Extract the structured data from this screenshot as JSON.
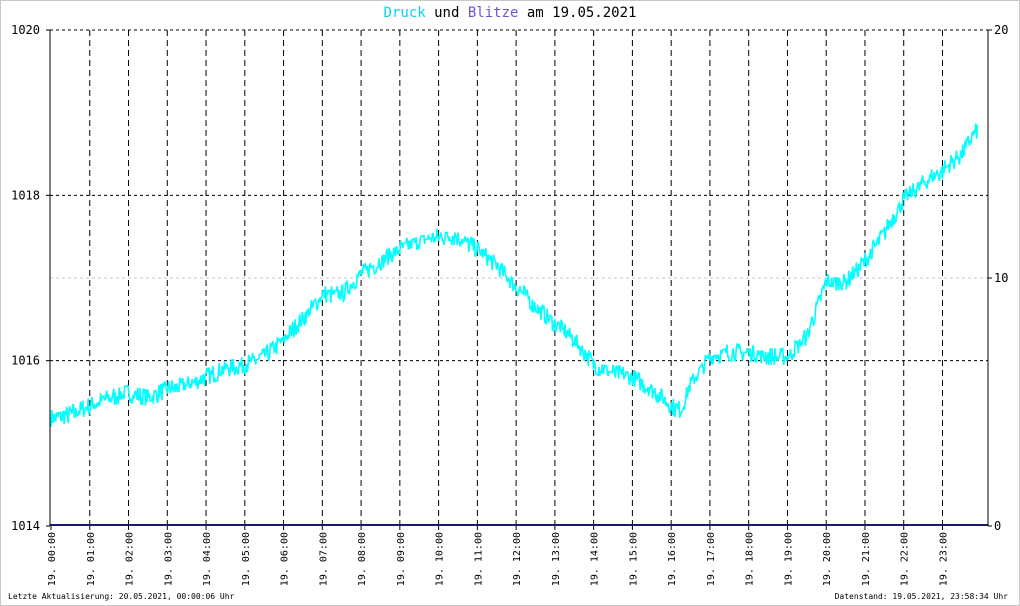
{
  "title": {
    "word1": "Druck",
    "word1_color": "#00d8e8",
    "word2": "und",
    "word3": "Blitze",
    "word3_color": "#6a5acd",
    "rest": "am 19.05.2021"
  },
  "footer": {
    "left": "Letzte Aktualisierung: 20.05.2021, 00:00:06 Uhr",
    "right": "Datenstand: 19.05.2021, 23:58:34 Uhr"
  },
  "chart_data": {
    "type": "line",
    "grid": true,
    "left_axis": {
      "ylim": [
        1014,
        1020
      ],
      "ticks": [
        "1014",
        "1016",
        "1018",
        "1020"
      ]
    },
    "right_axis": {
      "ylim": [
        0,
        20
      ],
      "ticks": [
        "0",
        "10",
        "20"
      ]
    },
    "x_tick_labels": [
      "19. 00:00",
      "19. 01:00",
      "19. 02:00",
      "19. 03:00",
      "19. 04:00",
      "19. 05:00",
      "19. 06:00",
      "19. 07:00",
      "19. 08:00",
      "19. 09:00",
      "19. 10:00",
      "19. 11:00",
      "19. 12:00",
      "19. 13:00",
      "19. 14:00",
      "19. 15:00",
      "19. 16:00",
      "19. 17:00",
      "19. 18:00",
      "19. 19:00",
      "19. 20:00",
      "19. 21:00",
      "19. 22:00",
      "19. 23:00"
    ],
    "series": [
      {
        "name": "Druck",
        "axis": "left",
        "color": "#00ffff",
        "x_hours": [
          0,
          0.5,
          1,
          1.5,
          2,
          2.5,
          3,
          3.5,
          4,
          4.5,
          5,
          5.5,
          6,
          6.5,
          7,
          7.5,
          8,
          8.5,
          9,
          9.5,
          10,
          10.5,
          11,
          11.5,
          12,
          12.5,
          13,
          13.5,
          14,
          14.5,
          15,
          15.5,
          16,
          16.25,
          16.5,
          17,
          17.5,
          18,
          18.5,
          19,
          19.5,
          20,
          20.5,
          21,
          21.5,
          22,
          22.5,
          23,
          23.5,
          23.9
        ],
        "values": [
          1015.3,
          1015.35,
          1015.45,
          1015.55,
          1015.6,
          1015.55,
          1015.65,
          1015.7,
          1015.8,
          1015.9,
          1015.95,
          1016.05,
          1016.25,
          1016.5,
          1016.8,
          1016.8,
          1017.05,
          1017.2,
          1017.35,
          1017.45,
          1017.5,
          1017.5,
          1017.35,
          1017.15,
          1016.9,
          1016.65,
          1016.45,
          1016.25,
          1015.95,
          1015.85,
          1015.8,
          1015.65,
          1015.45,
          1015.4,
          1015.7,
          1016.05,
          1016.1,
          1016.1,
          1016.05,
          1016.05,
          1016.3,
          1016.95,
          1016.95,
          1017.2,
          1017.55,
          1017.95,
          1018.15,
          1018.3,
          1018.5,
          1018.8
        ]
      },
      {
        "name": "Blitze",
        "axis": "right",
        "color": "#191970",
        "x_hours": [
          0,
          24
        ],
        "values": [
          0,
          0
        ]
      }
    ]
  }
}
